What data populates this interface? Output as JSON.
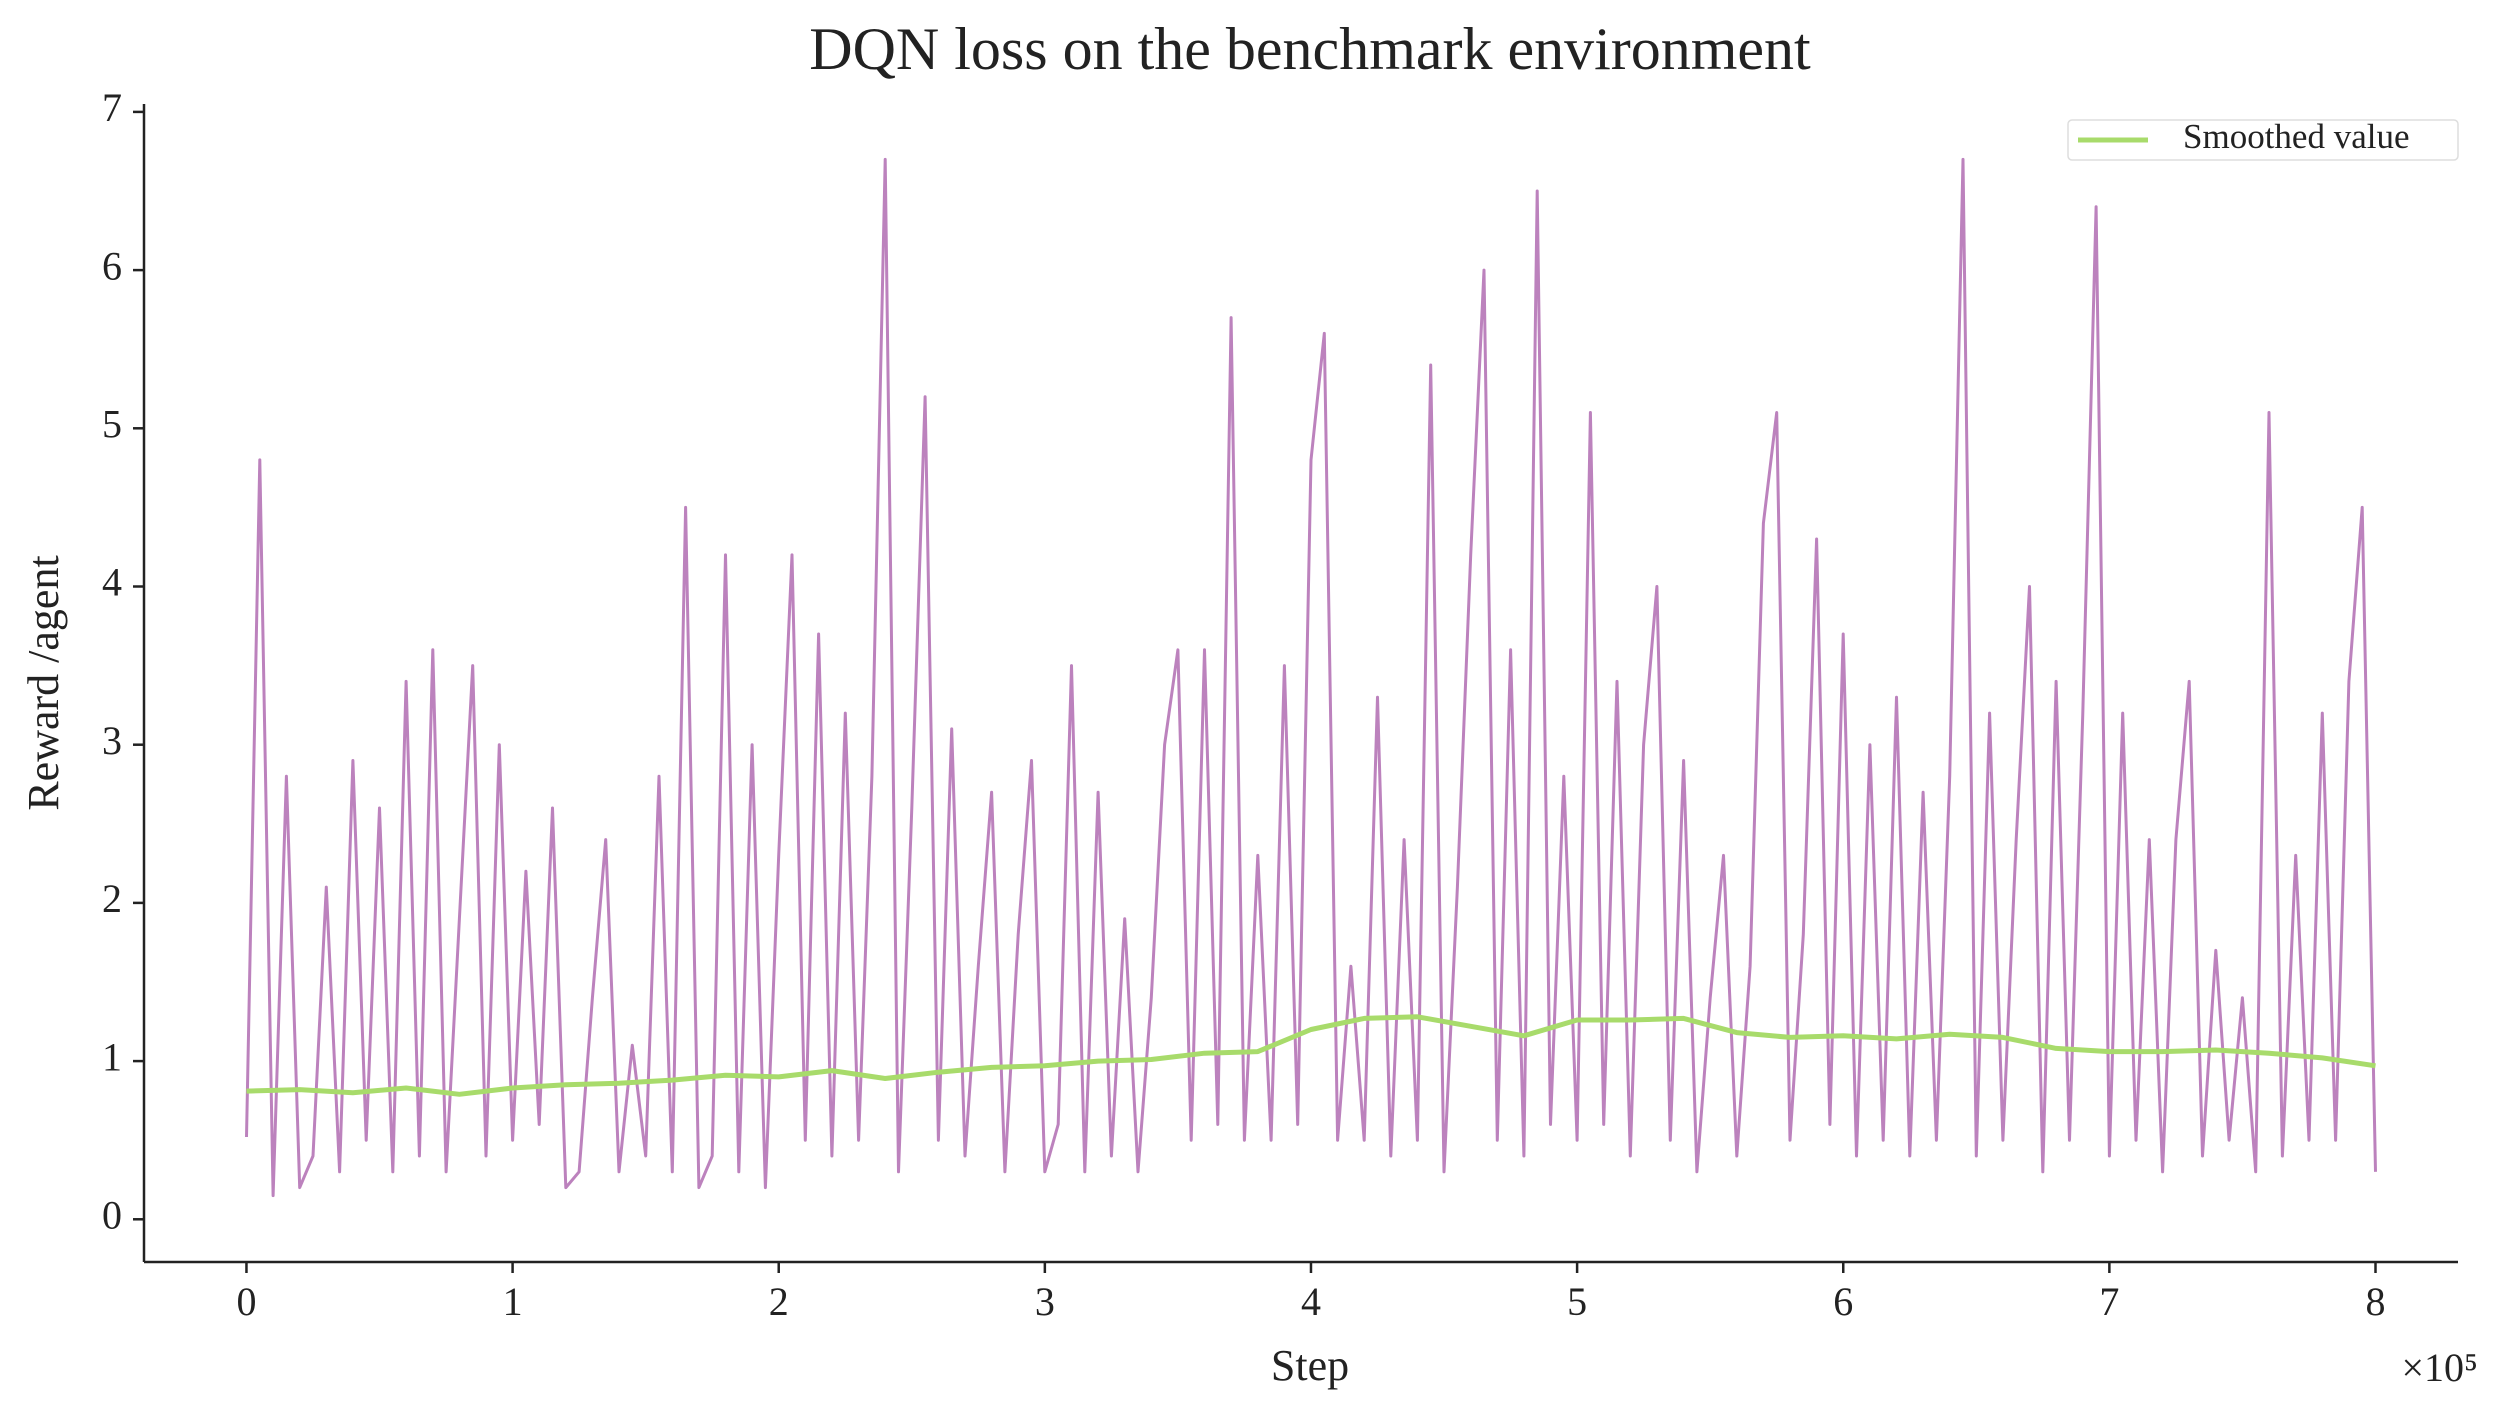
{
  "chart_data": {
    "type": "line",
    "title": "DQN loss on the benchmark environment",
    "xlabel": "Step",
    "ylabel": "Reward /agent",
    "x_offset_label": "×10⁵",
    "xlim": [
      -0.385,
      8.31
    ],
    "ylim": [
      -0.27,
      7.05
    ],
    "xticks": [
      0,
      1,
      2,
      3,
      4,
      5,
      6,
      7,
      8
    ],
    "yticks": [
      0,
      1,
      2,
      3,
      4,
      5,
      6,
      7
    ],
    "legend": "upper right",
    "series": [
      {
        "color": "#bc82bd",
        "linewidth": 3,
        "x": [
          0,
          0.05,
          0.1,
          0.15,
          0.2,
          0.25,
          0.3,
          0.35,
          0.4,
          0.45,
          0.5,
          0.55,
          0.6,
          0.65,
          0.7,
          0.75,
          0.8,
          0.85,
          0.9,
          0.95,
          1,
          1.05,
          1.1,
          1.15,
          1.2,
          1.25,
          1.3,
          1.35,
          1.4,
          1.45,
          1.5,
          1.55,
          1.6,
          1.65,
          1.7,
          1.75,
          1.8,
          1.85,
          1.9,
          1.95,
          2,
          2.05,
          2.1,
          2.15,
          2.2,
          2.25,
          2.3,
          2.35,
          2.4,
          2.45,
          2.5,
          2.55,
          2.6,
          2.65,
          2.7,
          2.75,
          2.8,
          2.85,
          2.9,
          2.95,
          3,
          3.05,
          3.1,
          3.15,
          3.2,
          3.25,
          3.3,
          3.35,
          3.4,
          3.45,
          3.5,
          3.55,
          3.6,
          3.65,
          3.7,
          3.75,
          3.8,
          3.85,
          3.9,
          3.95,
          4,
          4.05,
          4.1,
          4.15,
          4.2,
          4.25,
          4.3,
          4.35,
          4.4,
          4.45,
          4.5,
          4.55,
          4.6,
          4.65,
          4.7,
          4.75,
          4.8,
          4.85,
          4.9,
          4.95,
          5,
          5.05,
          5.1,
          5.15,
          5.2,
          5.25,
          5.3,
          5.35,
          5.4,
          5.45,
          5.5,
          5.55,
          5.6,
          5.65,
          5.7,
          5.75,
          5.8,
          5.85,
          5.9,
          5.95,
          6,
          6.05,
          6.1,
          6.15,
          6.2,
          6.25,
          6.3,
          6.35,
          6.4,
          6.45,
          6.5,
          6.55,
          6.6,
          6.65,
          6.7,
          6.75,
          6.8,
          6.85,
          6.9,
          6.95,
          7,
          7.05,
          7.1,
          7.15,
          7.2,
          7.25,
          7.3,
          7.35,
          7.4,
          7.45,
          7.5,
          7.55,
          7.6,
          7.65,
          7.7,
          7.75,
          7.8,
          7.85,
          7.9,
          7.95,
          8
        ],
        "values": [
          0.52,
          4.8,
          0.15,
          2.8,
          0.2,
          0.4,
          2.1,
          0.3,
          2.9,
          0.5,
          2.6,
          0.3,
          3.4,
          0.4,
          3.6,
          0.3,
          1.9,
          3.5,
          0.4,
          3.0,
          0.5,
          2.2,
          0.6,
          2.6,
          0.2,
          0.3,
          1.4,
          2.4,
          0.3,
          1.1,
          0.4,
          2.8,
          0.3,
          4.5,
          0.2,
          0.4,
          4.2,
          0.3,
          3.0,
          0.2,
          2.3,
          4.2,
          0.5,
          3.7,
          0.4,
          3.2,
          0.5,
          2.8,
          6.7,
          0.3,
          2.6,
          5.2,
          0.5,
          3.1,
          0.4,
          1.6,
          2.7,
          0.3,
          1.8,
          2.9,
          0.3,
          0.6,
          3.5,
          0.3,
          2.7,
          0.4,
          1.9,
          0.3,
          1.4,
          3.0,
          3.6,
          0.5,
          3.6,
          0.6,
          5.7,
          0.5,
          2.3,
          0.5,
          3.5,
          0.6,
          4.8,
          5.6,
          0.5,
          1.6,
          0.5,
          3.3,
          0.4,
          2.4,
          0.5,
          5.4,
          0.3,
          2.1,
          4.2,
          6.0,
          0.5,
          3.6,
          0.4,
          6.5,
          0.6,
          2.8,
          0.5,
          5.1,
          0.6,
          3.4,
          0.4,
          3.0,
          4.0,
          0.5,
          2.9,
          0.3,
          1.4,
          2.3,
          0.4,
          1.6,
          4.4,
          5.1,
          0.5,
          1.8,
          4.3,
          0.6,
          3.7,
          0.4,
          3.0,
          0.5,
          3.3,
          0.4,
          2.7,
          0.5,
          2.8,
          6.7,
          0.4,
          3.2,
          0.5,
          2.4,
          4.0,
          0.3,
          3.4,
          0.5,
          3.2,
          6.4,
          0.4,
          3.2,
          0.5,
          2.4,
          0.3,
          2.4,
          3.4,
          0.4,
          1.7,
          0.5,
          1.4,
          0.3,
          5.1,
          0.4,
          2.3,
          0.5,
          3.2,
          0.5,
          3.4,
          4.5,
          0.3
        ]
      },
      {
        "name": "Smoothed value",
        "color": "#a8db6b",
        "linewidth": 5,
        "x": [
          0,
          0.2,
          0.4,
          0.6,
          0.8,
          1,
          1.2,
          1.4,
          1.6,
          1.8,
          2,
          2.2,
          2.4,
          2.6,
          2.8,
          3,
          3.2,
          3.4,
          3.6,
          3.8,
          4,
          4.2,
          4.4,
          4.6,
          4.8,
          5,
          5.2,
          5.4,
          5.6,
          5.8,
          6,
          6.2,
          6.4,
          6.6,
          6.8,
          7,
          7.2,
          7.4,
          7.6,
          7.8,
          8
        ],
        "values": [
          0.81,
          0.82,
          0.8,
          0.83,
          0.79,
          0.83,
          0.85,
          0.86,
          0.88,
          0.91,
          0.9,
          0.94,
          0.89,
          0.93,
          0.96,
          0.97,
          1.0,
          1.01,
          1.05,
          1.06,
          1.2,
          1.27,
          1.28,
          1.22,
          1.16,
          1.26,
          1.26,
          1.27,
          1.18,
          1.15,
          1.16,
          1.14,
          1.17,
          1.15,
          1.08,
          1.06,
          1.06,
          1.07,
          1.05,
          1.02,
          0.97
        ]
      }
    ]
  }
}
